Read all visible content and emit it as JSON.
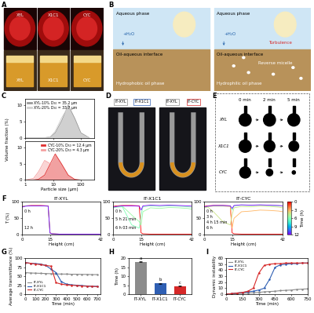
{
  "photos": {
    "A": {
      "panel": "A",
      "top_labels": [
        "XYL",
        "X1C1",
        "CYC"
      ],
      "bottom_labels": [
        "XYL",
        "X1C1",
        "CYC"
      ]
    },
    "D": {
      "panel": "D",
      "labels": [
        "IT-XYL",
        "IT-X1C1",
        "IT-XYL",
        "IT-CYC"
      ]
    },
    "E": {
      "panel": "E",
      "times": [
        "0 min",
        "2 min",
        "5 min"
      ],
      "rows": [
        "XYL",
        "X1C1",
        "CYC"
      ]
    }
  },
  "diagram": {
    "panel": "B",
    "left": {
      "top": "Aqueous phase",
      "water": "+H₂O",
      "interface": "Oil-aqueous interface",
      "bottom": "Hydrophobic oil phase"
    },
    "right": {
      "top": "Aqueous phase",
      "water": "+H₂O",
      "turbulence": "Turbulence",
      "interface": "Oil-aqueous interface",
      "micelle": "Reverse micelle",
      "bottom": "Hydrophilic oil phase"
    }
  },
  "chart_data": [
    {
      "type": "line",
      "panel": "C",
      "ylabel": "Volume fraction (%)",
      "log": "x",
      "xlim": [
        1,
        300
      ],
      "xticks": [
        1,
        10,
        100
      ],
      "ylim": [
        0,
        12
      ],
      "yticks": [
        0,
        5,
        10
      ],
      "legend": "upper left",
      "x": [
        1,
        2,
        3,
        5,
        8,
        12,
        20,
        35,
        60,
        100,
        200
      ],
      "series": [
        {
          "name": "XYL-10% D₅₀ = 35.2 μm",
          "color": "#9a9a9a",
          "values": [
            0,
            0,
            0,
            0,
            0.2,
            1.5,
            5,
            10,
            6,
            1.5,
            0
          ]
        },
        {
          "name": "XYL-20% D₅₀ = 33.7 μm",
          "color": "#d0d0d0",
          "values": [
            0,
            0,
            0,
            0,
            0.3,
            2,
            6,
            9.5,
            5,
            1,
            0
          ]
        }
      ]
    },
    {
      "type": "line",
      "xlabel": "Particle size (μm)",
      "log": "x",
      "xlim": [
        1,
        300
      ],
      "xticks": [
        1,
        10,
        100
      ],
      "ylim": [
        0,
        12
      ],
      "yticks": [
        0,
        5,
        10
      ],
      "legend": "upper right",
      "x": [
        1,
        2,
        3,
        5,
        8,
        12,
        20,
        35,
        60,
        100,
        200
      ],
      "series": [
        {
          "name": "CYC-10% D₅₀ = 12.4 μm",
          "color": "#e03030",
          "values": [
            0,
            0,
            0.2,
            1.5,
            5,
            8,
            5,
            1.5,
            0.2,
            0,
            0
          ]
        },
        {
          "name": "CYC-20% D₅₀ = 4.3 μm",
          "color": "#f4a0a0",
          "values": [
            0,
            0.5,
            2.5,
            6,
            5,
            2,
            0.5,
            0,
            0,
            0,
            0
          ]
        }
      ]
    },
    {
      "type": "line",
      "panel": "F",
      "title": "IT-XYL",
      "xlabel": "Height (cm)",
      "ylabel": "T (%)",
      "xlim": [
        0,
        42
      ],
      "xticks": [
        0,
        15,
        42
      ],
      "ylim": [
        0,
        100
      ],
      "yticks": [
        0,
        50,
        100
      ],
      "annotations": [
        "0 h",
        "12 h"
      ],
      "x": [
        0,
        2,
        5,
        10,
        14,
        15,
        16,
        20,
        25,
        30,
        35,
        40,
        42
      ],
      "series": [
        {
          "time": 0,
          "values": [
            86,
            88,
            89,
            89,
            88,
            6,
            3,
            2,
            2,
            2,
            2,
            2,
            2
          ]
        },
        {
          "time": 6,
          "values": [
            85,
            88,
            88,
            88,
            87,
            5,
            3,
            2,
            2,
            2,
            2,
            2,
            2
          ]
        },
        {
          "time": 12,
          "values": [
            84,
            87,
            88,
            88,
            87,
            5,
            3,
            2,
            2,
            2,
            2,
            2,
            2
          ]
        }
      ]
    },
    {
      "type": "line",
      "title": "IT-X1C1",
      "xlabel": "Height (cm)",
      "xlim": [
        0,
        42
      ],
      "xticks": [
        0,
        15,
        42
      ],
      "ylim": [
        0,
        100
      ],
      "yticks": [
        0,
        50,
        100
      ],
      "annotations": [
        "0 h",
        "5 h 21 min",
        "6 h 03 min"
      ],
      "x": [
        0,
        2,
        5,
        10,
        14,
        15,
        16,
        20,
        25,
        30,
        35,
        40,
        42
      ],
      "series": [
        {
          "time": 0,
          "values": [
            86,
            88,
            89,
            89,
            88,
            6,
            3,
            2,
            2,
            2,
            2,
            2,
            2
          ]
        },
        {
          "time": 5.35,
          "values": [
            84,
            86,
            87,
            60,
            40,
            30,
            70,
            82,
            80,
            83,
            82,
            80,
            78
          ]
        },
        {
          "time": 6.05,
          "values": [
            82,
            84,
            85,
            30,
            20,
            60,
            85,
            88,
            86,
            88,
            87,
            85,
            84
          ]
        },
        {
          "time": 12,
          "values": [
            84,
            86,
            88,
            88,
            87,
            75,
            88,
            90,
            89,
            90,
            89,
            88,
            87
          ]
        }
      ]
    },
    {
      "type": "line",
      "title": "IT-CYC",
      "xlabel": "Height (cm)",
      "xlim": [
        0,
        42
      ],
      "xticks": [
        0,
        15,
        42
      ],
      "ylim": [
        0,
        100
      ],
      "yticks": [
        0,
        50,
        100
      ],
      "annotations": [
        "0 h",
        "3 h",
        "4 h 15 min",
        "6 h"
      ],
      "colorbar": {
        "label": "Time (h)",
        "range": [
          0,
          12
        ],
        "ticks": [
          0,
          3,
          6,
          9,
          12
        ]
      },
      "x": [
        0,
        2,
        5,
        10,
        14,
        15,
        16,
        20,
        25,
        30,
        35,
        40,
        42
      ],
      "series": [
        {
          "time": 0,
          "values": [
            86,
            88,
            89,
            89,
            88,
            6,
            3,
            2,
            2,
            2,
            2,
            2,
            2
          ]
        },
        {
          "time": 3,
          "values": [
            84,
            86,
            87,
            87,
            86,
            20,
            50,
            70,
            72,
            75,
            74,
            72,
            70
          ]
        },
        {
          "time": 4.25,
          "values": [
            82,
            84,
            70,
            40,
            30,
            60,
            82,
            86,
            85,
            87,
            86,
            84,
            82
          ]
        },
        {
          "time": 6,
          "values": [
            84,
            86,
            88,
            88,
            87,
            75,
            88,
            90,
            89,
            90,
            89,
            88,
            87
          ]
        },
        {
          "time": 12,
          "values": [
            85,
            87,
            89,
            89,
            88,
            80,
            89,
            91,
            90,
            91,
            90,
            89,
            88
          ]
        }
      ]
    },
    {
      "type": "line",
      "panel": "G",
      "xlabel": "Time (min)",
      "ylabel": "Average transmittance (%)",
      "xlim": [
        0,
        730
      ],
      "xticks": [
        0,
        100,
        200,
        300,
        400,
        500,
        600,
        700
      ],
      "ylim": [
        0,
        100
      ],
      "yticks": [
        0,
        25,
        50,
        75,
        100
      ],
      "legend": "lower left",
      "x": [
        0,
        50,
        100,
        150,
        200,
        250,
        300,
        350,
        400,
        450,
        500,
        550,
        600,
        650,
        700
      ],
      "series": [
        {
          "name": "IT-XYL",
          "color": "#8c8c8c",
          "values": [
            60,
            59,
            58.5,
            58,
            57.5,
            57,
            56.5,
            56,
            56,
            55.5,
            55.5,
            55,
            55,
            54.5,
            54.5
          ]
        },
        {
          "name": "IT-X1C1",
          "color": "#2f5fb3",
          "values": [
            88,
            86,
            85,
            84,
            80,
            70,
            60,
            35,
            28,
            26,
            25,
            24,
            23,
            22,
            22
          ]
        },
        {
          "name": "IT-CYC",
          "color": "#d62828",
          "values": [
            88,
            86,
            84,
            82,
            80,
            78,
            32,
            28,
            26,
            25,
            24,
            23,
            22,
            22,
            21
          ]
        }
      ]
    },
    {
      "type": "bar",
      "panel": "H",
      "ylabel": "Time (h)",
      "categories": [
        "IT-XYL",
        "IT-X1C1",
        "IT-CYC"
      ],
      "values": [
        18,
        6,
        4.5
      ],
      "errors": [
        0.3,
        0.3,
        0.3
      ],
      "colors": [
        "#8c8c8c",
        "#2f5fb3",
        "#d62828"
      ],
      "annotations": [
        "a",
        "b",
        "c"
      ],
      "ylim": [
        0,
        20
      ],
      "yticks": [
        0,
        5,
        10,
        15,
        20
      ]
    },
    {
      "type": "line",
      "panel": "I",
      "xlabel": "Time (min)",
      "ylabel": "Dynamic instability",
      "xlim": [
        0,
        750
      ],
      "xticks": [
        0,
        150,
        300,
        450,
        600,
        750
      ],
      "ylim": [
        0,
        60
      ],
      "yticks": [
        0,
        10,
        20,
        30,
        40,
        50,
        60
      ],
      "legend": "upper left",
      "x": [
        0,
        50,
        100,
        150,
        200,
        250,
        300,
        350,
        400,
        450,
        500,
        550,
        600,
        650,
        700,
        750
      ],
      "series": [
        {
          "name": "IT-XYL",
          "color": "#8c8c8c",
          "values": [
            0,
            0.5,
            1,
            1.5,
            2,
            2.5,
            3,
            4,
            4.5,
            5,
            6,
            6.5,
            7,
            8,
            8.5,
            9
          ]
        },
        {
          "name": "IT-X1C1",
          "color": "#2f5fb3",
          "values": [
            0,
            1,
            2,
            3,
            4,
            5,
            7,
            10,
            25,
            45,
            49,
            50,
            51,
            51,
            52,
            52
          ]
        },
        {
          "name": "IT-CYC",
          "color": "#d62828",
          "values": [
            0,
            1,
            2,
            3,
            5,
            10,
            35,
            48,
            50,
            51,
            51,
            52,
            52,
            52,
            52,
            52
          ]
        }
      ]
    }
  ]
}
